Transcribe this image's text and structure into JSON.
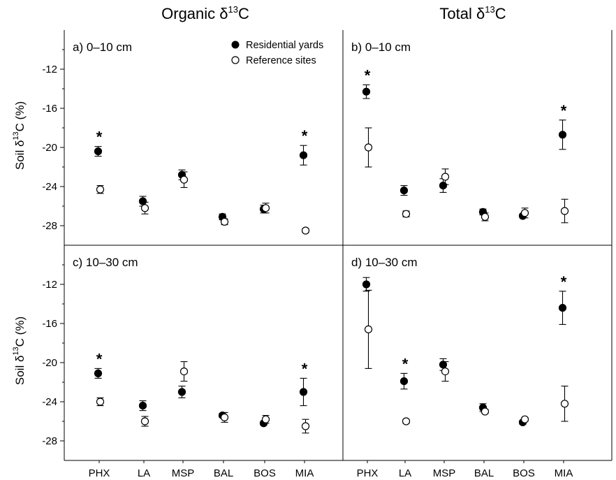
{
  "column_titles": [
    "Organic δ",
    "Total δ"
  ],
  "column_title_sup": "13",
  "column_title_suffix": "C",
  "y_axis_label": {
    "prefix": "Soil δ",
    "sup": "13",
    "suffix": "C (%)"
  },
  "legend": {
    "filled": "Residential yards",
    "open": "Reference sites"
  },
  "colors": {
    "filled": "#000000",
    "open": "#ffffff",
    "stroke": "#000000"
  },
  "chart_data": [
    {
      "type": "scatter",
      "panel_label": "a) 0–10 cm",
      "categories": [
        "PHX",
        "LA",
        "MSP",
        "BAL",
        "BOS",
        "MIA"
      ],
      "ylim": [
        -30,
        -8
      ],
      "yticks": [
        -12,
        -16,
        -20,
        -24,
        -28
      ],
      "series": [
        {
          "name": "Residential yards",
          "values": [
            -20.4,
            -25.5,
            -22.8,
            -27.1,
            -26.3,
            -20.8
          ],
          "errors": [
            0.5,
            0.5,
            0.5,
            0.3,
            0.4,
            1.0
          ]
        },
        {
          "name": "Reference sites",
          "values": [
            -24.3,
            -26.2,
            -23.3,
            -27.6,
            -26.2,
            -28.5
          ],
          "errors": [
            0.4,
            0.6,
            0.8,
            0.3,
            0.5,
            0.2
          ]
        }
      ],
      "significant": [
        true,
        false,
        false,
        false,
        false,
        true
      ]
    },
    {
      "type": "scatter",
      "panel_label": "b) 0–10 cm",
      "categories": [
        "PHX",
        "LA",
        "MSP",
        "BAL",
        "BOS",
        "MIA"
      ],
      "ylim": [
        -30,
        -8
      ],
      "yticks": [
        -12,
        -16,
        -20,
        -24,
        -28
      ],
      "series": [
        {
          "name": "Residential yards",
          "values": [
            -14.3,
            -24.4,
            -23.9,
            -26.6,
            -27.0,
            -18.7
          ],
          "errors": [
            0.7,
            0.5,
            0.7,
            0.3,
            0.2,
            1.5
          ]
        },
        {
          "name": "Reference sites",
          "values": [
            -20.0,
            -26.8,
            -23.0,
            -27.1,
            -26.7,
            -26.5
          ],
          "errors": [
            2.0,
            0.3,
            0.8,
            0.4,
            0.5,
            1.2
          ]
        }
      ],
      "significant": [
        true,
        false,
        false,
        false,
        false,
        true
      ]
    },
    {
      "type": "scatter",
      "panel_label": "c) 10–30 cm",
      "categories": [
        "PHX",
        "LA",
        "MSP",
        "BAL",
        "BOS",
        "MIA"
      ],
      "ylim": [
        -30,
        -8
      ],
      "yticks": [
        -12,
        -16,
        -20,
        -24,
        -28
      ],
      "series": [
        {
          "name": "Residential yards",
          "values": [
            -21.1,
            -24.4,
            -23.0,
            -25.4,
            -26.2,
            -23.0
          ],
          "errors": [
            0.5,
            0.5,
            0.6,
            0.2,
            0.2,
            1.4
          ]
        },
        {
          "name": "Reference sites",
          "values": [
            -24.0,
            -26.0,
            -20.9,
            -25.6,
            -25.8,
            -26.5
          ],
          "errors": [
            0.4,
            0.5,
            1.0,
            0.5,
            0.4,
            0.7
          ]
        }
      ],
      "significant": [
        true,
        false,
        false,
        false,
        false,
        true
      ]
    },
    {
      "type": "scatter",
      "panel_label": "d) 10–30 cm",
      "categories": [
        "PHX",
        "LA",
        "MSP",
        "BAL",
        "BOS",
        "MIA"
      ],
      "ylim": [
        -30,
        -8
      ],
      "yticks": [
        -12,
        -16,
        -20,
        -24,
        -28
      ],
      "series": [
        {
          "name": "Residential yards",
          "values": [
            -12.0,
            -21.9,
            -20.2,
            -24.6,
            -26.1,
            -14.4
          ],
          "errors": [
            0.7,
            0.8,
            0.6,
            0.4,
            0.2,
            1.7
          ]
        },
        {
          "name": "Reference sites",
          "values": [
            -16.6,
            -26.0,
            -20.9,
            -25.0,
            -25.8,
            -24.2
          ],
          "errors": [
            4.0,
            0.2,
            1.0,
            0.2,
            0.2,
            1.8
          ]
        }
      ],
      "significant": [
        false,
        true,
        false,
        false,
        false,
        true
      ]
    }
  ]
}
